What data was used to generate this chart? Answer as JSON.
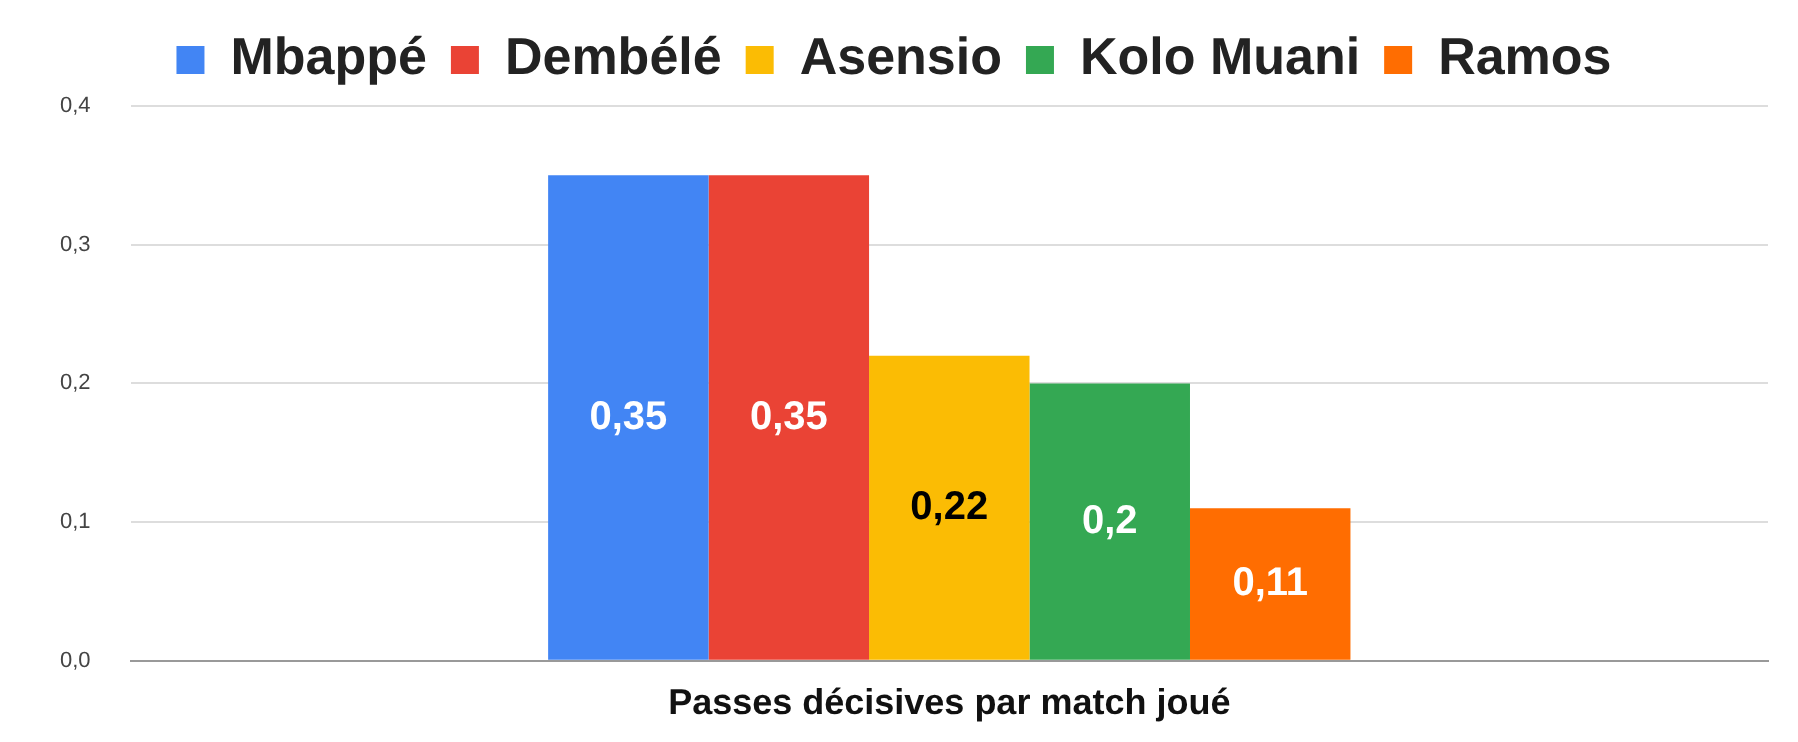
{
  "chart_data": {
    "type": "bar",
    "categories": [
      "Passes décisives par match joué"
    ],
    "series": [
      {
        "name": "Mbappé",
        "color": "#4285f4",
        "values": [
          0.35
        ],
        "value_labels": [
          "0,35"
        ]
      },
      {
        "name": "Dembélé",
        "color": "#ea4335",
        "values": [
          0.35
        ],
        "value_labels": [
          "0,35"
        ]
      },
      {
        "name": "Asensio",
        "color": "#fbbc04",
        "values": [
          0.22
        ],
        "value_labels": [
          "0,22"
        ]
      },
      {
        "name": "Kolo Muani",
        "color": "#34a853",
        "values": [
          0.2
        ],
        "value_labels": [
          "0,2"
        ]
      },
      {
        "name": "Ramos",
        "color": "#ff6d01",
        "values": [
          0.11
        ],
        "value_labels": [
          "0,11"
        ]
      }
    ],
    "ylim": [
      0,
      0.4
    ],
    "yticks": [
      {
        "value": 0,
        "label": "0,0"
      },
      {
        "value": 0.1,
        "label": "0,1"
      },
      {
        "value": 0.2,
        "label": "0,2"
      },
      {
        "value": 0.3,
        "label": "0,3"
      },
      {
        "value": 0.4,
        "label": "0,4"
      }
    ],
    "grid": "y",
    "legend": "top"
  }
}
